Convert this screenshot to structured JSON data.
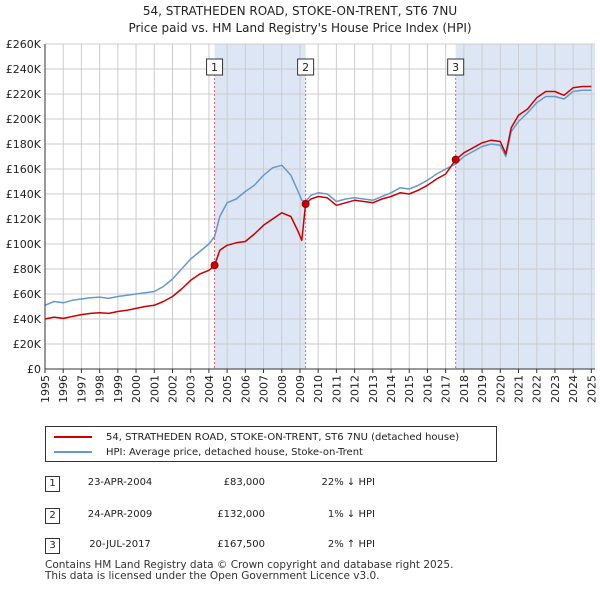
{
  "header": {
    "title": "54, STRATHEDEN ROAD, STOKE-ON-TRENT, ST6 7NU",
    "subtitle": "Price paid vs. HM Land Registry's House Price Index (HPI)"
  },
  "chart_data": {
    "type": "line",
    "title": "54, STRATHEDEN ROAD, STOKE-ON-TRENT, ST6 7NU",
    "subtitle": "Price paid vs. HM Land Registry's House Price Index (HPI)",
    "xlim": [
      1995,
      2025.2
    ],
    "ylim": [
      0,
      260000
    ],
    "y_ticks": [
      {
        "value": 0,
        "label": "£0"
      },
      {
        "value": 20000,
        "label": "£20K"
      },
      {
        "value": 40000,
        "label": "£40K"
      },
      {
        "value": 60000,
        "label": "£60K"
      },
      {
        "value": 80000,
        "label": "£80K"
      },
      {
        "value": 100000,
        "label": "£100K"
      },
      {
        "value": 120000,
        "label": "£120K"
      },
      {
        "value": 140000,
        "label": "£140K"
      },
      {
        "value": 160000,
        "label": "£160K"
      },
      {
        "value": 180000,
        "label": "£180K"
      },
      {
        "value": 200000,
        "label": "£200K"
      },
      {
        "value": 220000,
        "label": "£220K"
      },
      {
        "value": 240000,
        "label": "£240K"
      },
      {
        "value": 260000,
        "label": "£260K"
      }
    ],
    "x_ticks": [
      "1995",
      "1996",
      "1997",
      "1998",
      "1999",
      "2000",
      "2001",
      "2002",
      "2003",
      "2004",
      "2005",
      "2006",
      "2007",
      "2008",
      "2009",
      "2010",
      "2011",
      "2012",
      "2013",
      "2014",
      "2015",
      "2016",
      "2017",
      "2018",
      "2019",
      "2020",
      "2021",
      "2022",
      "2023",
      "2024",
      "2025"
    ],
    "shaded_periods": [
      [
        2004.31,
        2009.31
      ],
      [
        2017.55,
        2025.2
      ]
    ],
    "colors": {
      "property": "#cc0000",
      "hpi": "#6699cc",
      "shade": "#dde6f5",
      "marker_line": "#e06666"
    },
    "series": [
      {
        "name": "54, STRATHEDEN ROAD, STOKE-ON-TRENT, ST6 7NU (detached house)",
        "color": "#cc0000",
        "x": [
          1995.0,
          1995.5,
          1996.0,
          1996.5,
          1997.0,
          1997.5,
          1998.0,
          1998.5,
          1999.0,
          1999.5,
          2000.0,
          2000.5,
          2001.0,
          2001.5,
          2002.0,
          2002.5,
          2003.0,
          2003.5,
          2004.0,
          2004.31,
          2004.6,
          2005.0,
          2005.5,
          2006.0,
          2006.5,
          2007.0,
          2007.5,
          2008.0,
          2008.5,
          2008.9,
          2009.1,
          2009.31,
          2009.6,
          2010.0,
          2010.5,
          2011.0,
          2011.5,
          2012.0,
          2012.5,
          2013.0,
          2013.5,
          2014.0,
          2014.5,
          2015.0,
          2015.5,
          2016.0,
          2016.5,
          2017.0,
          2017.55,
          2018.0,
          2018.5,
          2019.0,
          2019.5,
          2020.0,
          2020.3,
          2020.6,
          2021.0,
          2021.5,
          2022.0,
          2022.5,
          2023.0,
          2023.5,
          2024.0,
          2024.5,
          2025.0
        ],
        "values": [
          40000,
          41500,
          40500,
          42000,
          43500,
          44500,
          45000,
          44500,
          46000,
          47000,
          48500,
          50000,
          51000,
          54000,
          58000,
          64000,
          71000,
          76000,
          79000,
          83000,
          95000,
          99000,
          101000,
          102000,
          108000,
          115000,
          120000,
          125000,
          122000,
          110000,
          103000,
          132000,
          136000,
          138000,
          137000,
          131000,
          133000,
          135000,
          134000,
          133000,
          136000,
          138000,
          141000,
          140000,
          143000,
          147000,
          152000,
          156000,
          167500,
          173000,
          177000,
          181000,
          183000,
          182000,
          172000,
          193000,
          203000,
          208000,
          217000,
          222000,
          222000,
          219000,
          225000,
          226000,
          226000
        ]
      },
      {
        "name": "HPI: Average price, detached house, Stoke-on-Trent",
        "color": "#6699cc",
        "x": [
          1995.0,
          1995.5,
          1996.0,
          1996.5,
          1997.0,
          1997.5,
          1998.0,
          1998.5,
          1999.0,
          1999.5,
          2000.0,
          2000.5,
          2001.0,
          2001.5,
          2002.0,
          2002.5,
          2003.0,
          2003.5,
          2004.0,
          2004.31,
          2004.6,
          2005.0,
          2005.5,
          2006.0,
          2006.5,
          2007.0,
          2007.5,
          2008.0,
          2008.5,
          2008.9,
          2009.1,
          2009.31,
          2009.6,
          2010.0,
          2010.5,
          2011.0,
          2011.5,
          2012.0,
          2012.5,
          2013.0,
          2013.5,
          2014.0,
          2014.5,
          2015.0,
          2015.5,
          2016.0,
          2016.5,
          2017.0,
          2017.55,
          2018.0,
          2018.5,
          2019.0,
          2019.5,
          2020.0,
          2020.3,
          2020.6,
          2021.0,
          2021.5,
          2022.0,
          2022.5,
          2023.0,
          2023.5,
          2024.0,
          2024.5,
          2025.0
        ],
        "values": [
          51000,
          54000,
          53000,
          55000,
          56000,
          57000,
          57500,
          56500,
          58000,
          59000,
          60000,
          61000,
          62000,
          66000,
          72000,
          80000,
          88000,
          94000,
          100000,
          106000,
          122000,
          133000,
          136000,
          142000,
          147000,
          155000,
          161000,
          163000,
          155000,
          142000,
          135000,
          134000,
          139000,
          141000,
          140000,
          134000,
          136000,
          137000,
          136000,
          135000,
          138000,
          141000,
          145000,
          144000,
          147000,
          151000,
          156000,
          160000,
          164000,
          170000,
          174000,
          178000,
          180000,
          179000,
          170000,
          190000,
          198000,
          205000,
          213000,
          218000,
          218000,
          216000,
          222000,
          223000,
          223000
        ]
      }
    ],
    "sales": [
      {
        "label": "1",
        "x": 2004.31,
        "price": 83000
      },
      {
        "label": "2",
        "x": 2009.31,
        "price": 132000
      },
      {
        "label": "3",
        "x": 2017.55,
        "price": 167500
      }
    ]
  },
  "legend": {
    "property_label": "54, STRATHEDEN ROAD, STOKE-ON-TRENT, ST6 7NU (detached house)",
    "hpi_label": "HPI: Average price, detached house, Stoke-on-Trent"
  },
  "sales_table": [
    {
      "num": "1",
      "date": "23-APR-2004",
      "price": "£83,000",
      "hpi": "22% ↓ HPI"
    },
    {
      "num": "2",
      "date": "24-APR-2009",
      "price": "£132,000",
      "hpi": "1% ↓ HPI"
    },
    {
      "num": "3",
      "date": "20-JUL-2017",
      "price": "£167,500",
      "hpi": "2% ↑ HPI"
    }
  ],
  "footer": {
    "line1": "Contains HM Land Registry data © Crown copyright and database right 2025.",
    "line2": "This data is licensed under the Open Government Licence v3.0."
  }
}
